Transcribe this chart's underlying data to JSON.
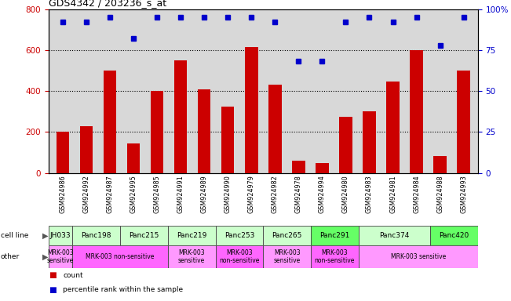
{
  "title": "GDS4342 / 203236_s_at",
  "samples": [
    "GSM924986",
    "GSM924992",
    "GSM924987",
    "GSM924995",
    "GSM924985",
    "GSM924991",
    "GSM924989",
    "GSM924990",
    "GSM924979",
    "GSM924982",
    "GSM924978",
    "GSM924994",
    "GSM924980",
    "GSM924983",
    "GSM924981",
    "GSM924984",
    "GSM924988",
    "GSM924993"
  ],
  "counts": [
    200,
    230,
    500,
    145,
    400,
    550,
    410,
    325,
    615,
    430,
    60,
    50,
    275,
    300,
    445,
    600,
    85,
    500
  ],
  "percentiles": [
    92,
    92,
    95,
    82,
    95,
    95,
    95,
    95,
    95,
    92,
    68,
    68,
    92,
    95,
    92,
    95,
    78,
    95
  ],
  "cell_lines": [
    {
      "name": "JH033",
      "start": 0,
      "end": 1,
      "color": "#ccffcc"
    },
    {
      "name": "Panc198",
      "start": 1,
      "end": 3,
      "color": "#ccffcc"
    },
    {
      "name": "Panc215",
      "start": 3,
      "end": 5,
      "color": "#ccffcc"
    },
    {
      "name": "Panc219",
      "start": 5,
      "end": 7,
      "color": "#ccffcc"
    },
    {
      "name": "Panc253",
      "start": 7,
      "end": 9,
      "color": "#ccffcc"
    },
    {
      "name": "Panc265",
      "start": 9,
      "end": 11,
      "color": "#ccffcc"
    },
    {
      "name": "Panc291",
      "start": 11,
      "end": 13,
      "color": "#66ff66"
    },
    {
      "name": "Panc374",
      "start": 13,
      "end": 16,
      "color": "#ccffcc"
    },
    {
      "name": "Panc420",
      "start": 16,
      "end": 18,
      "color": "#66ff66"
    }
  ],
  "other_labels": [
    {
      "label": "MRK-003\nsensitive",
      "start": 0,
      "end": 1,
      "color": "#ff99ff"
    },
    {
      "label": "MRK-003 non-sensitive",
      "start": 1,
      "end": 5,
      "color": "#ff66ff"
    },
    {
      "label": "MRK-003\nsensitive",
      "start": 5,
      "end": 7,
      "color": "#ff99ff"
    },
    {
      "label": "MRK-003\nnon-sensitive",
      "start": 7,
      "end": 9,
      "color": "#ff66ff"
    },
    {
      "label": "MRK-003\nsensitive",
      "start": 9,
      "end": 11,
      "color": "#ff99ff"
    },
    {
      "label": "MRK-003\nnon-sensitive",
      "start": 11,
      "end": 13,
      "color": "#ff66ff"
    },
    {
      "label": "MRK-003 sensitive",
      "start": 13,
      "end": 18,
      "color": "#ff99ff"
    }
  ],
  "ylim_left": [
    0,
    800
  ],
  "ylim_right": [
    0,
    100
  ],
  "yticks_left": [
    0,
    200,
    400,
    600,
    800
  ],
  "yticks_right": [
    0,
    25,
    50,
    75,
    100
  ],
  "bar_color": "#cc0000",
  "dot_color": "#0000cc",
  "bg_color": "#d8d8d8",
  "left_label_color": "#cc0000",
  "right_label_color": "#0000cc",
  "cell_line_label": "cell line",
  "other_label": "other",
  "legend": [
    {
      "color": "#cc0000",
      "label": "count"
    },
    {
      "color": "#0000cc",
      "label": "percentile rank within the sample"
    }
  ]
}
